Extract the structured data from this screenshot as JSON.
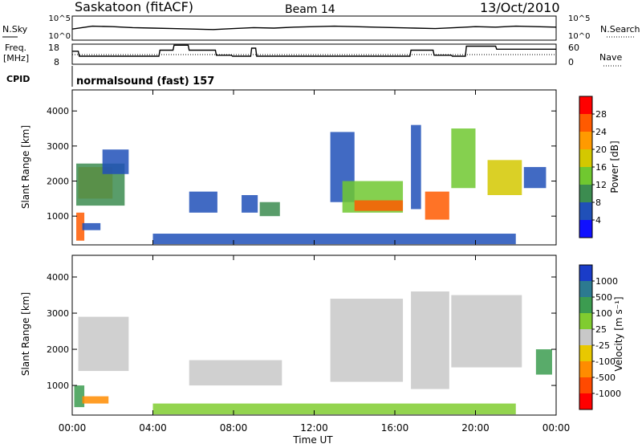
{
  "header": {
    "station": "Saskatoon (fitACF)",
    "beam": "Beam 14",
    "date": "13/Oct/2010"
  },
  "noise_panel": {
    "left_label": "N.Sky",
    "right_label": "N.Search",
    "left_ticks": [
      "10^5",
      "10^0"
    ],
    "right_ticks": [
      "10^5",
      "10^0"
    ]
  },
  "freq_panel": {
    "left_label": [
      "Freq.",
      "[MHz]"
    ],
    "right_label": "Nave",
    "left_ticks": [
      "18",
      "8"
    ],
    "right_ticks": [
      "60",
      "0"
    ]
  },
  "cpid": {
    "label": "CPID",
    "text": "normalsound (fast) 157"
  },
  "power_panel": {
    "ylabel": "Slant Range [km]",
    "yticks": [
      "4000",
      "3000",
      "2000",
      "1000"
    ],
    "colorbar_label": "Power [dB]",
    "colorbar_ticks": [
      "28",
      "24",
      "20",
      "16",
      "12",
      "8",
      "4"
    ],
    "colorbar_colors": [
      "#ff0000",
      "#ff5a00",
      "#ff9a00",
      "#d4c800",
      "#70c830",
      "#3c8c50",
      "#2050b8",
      "#1010ff"
    ]
  },
  "velocity_panel": {
    "ylabel": "Slant Range [km]",
    "yticks": [
      "4000",
      "3000",
      "2000",
      "1000"
    ],
    "colorbar_label": "Velocity [m s⁻¹]",
    "colorbar_ticks": [
      "1000",
      "500",
      "100",
      "25",
      "-25",
      "-100",
      "-500",
      "-1000"
    ],
    "colorbar_colors": [
      "#1a3cc8",
      "#2c7a90",
      "#3c9c50",
      "#80cc30",
      "#c8c8c8",
      "#e8c800",
      "#ff8c00",
      "#ff4a00",
      "#ff0000"
    ]
  },
  "x_axis": {
    "ticks": [
      "00:00",
      "04:00",
      "08:00",
      "12:00",
      "16:00",
      "20:00",
      "00:00"
    ],
    "label": "Time UT"
  },
  "chart_data": {
    "type": "heatmap",
    "x_range_hours": [
      0,
      24
    ],
    "y_range_km": [
      180,
      4600
    ],
    "noise_sky_log": {
      "x": [
        0,
        1,
        2,
        3,
        4,
        5,
        6,
        7,
        8,
        9,
        10,
        11,
        12,
        13,
        14,
        15,
        16,
        17,
        18,
        19,
        20,
        21,
        22,
        23,
        24
      ],
      "y": [
        2.3,
        2.9,
        2.8,
        2.6,
        2.5,
        2.4,
        2.3,
        2.2,
        2.4,
        2.6,
        2.5,
        2.7,
        2.8,
        2.9,
        2.8,
        2.7,
        2.6,
        2.5,
        2.4,
        2.6,
        2.8,
        2.7,
        2.9,
        2.8,
        2.7
      ]
    },
    "frequency_mhz": {
      "x": [
        0,
        0.3,
        0.35,
        4.3,
        4.35,
        5.0,
        5.05,
        5.75,
        5.8,
        7.1,
        7.15,
        7.9,
        7.95,
        8.85,
        8.9,
        9.1,
        9.15,
        15.0,
        15.05,
        16.75,
        16.8,
        17.9,
        17.95,
        18.8,
        18.85,
        19.5,
        19.55,
        21.0,
        21.05,
        24
      ],
      "y": [
        14.5,
        14.5,
        12,
        12,
        15,
        15,
        17.5,
        17.5,
        15,
        15,
        12.5,
        12.5,
        12,
        12,
        16,
        16,
        12,
        12,
        12,
        12,
        15,
        15,
        12.5,
        12.5,
        12,
        12,
        17,
        17,
        15.5,
        15.5
      ]
    },
    "nave_reference": 30,
    "power_db": {
      "units": "dB",
      "cells": [
        {
          "t": [
            0.3,
            2.0
          ],
          "r": [
            1500,
            2400
          ],
          "v": 22
        },
        {
          "t": [
            0.2,
            2.6
          ],
          "r": [
            1300,
            2500
          ],
          "v": 10
        },
        {
          "t": [
            1.5,
            2.8
          ],
          "r": [
            2200,
            2900
          ],
          "v": 6
        },
        {
          "t": [
            0.2,
            0.6
          ],
          "r": [
            300,
            1100
          ],
          "v": 26
        },
        {
          "t": [
            0.5,
            1.4
          ],
          "r": [
            600,
            800
          ],
          "v": 5
        },
        {
          "t": [
            5.8,
            7.2
          ],
          "r": [
            1100,
            1700
          ],
          "v": 6
        },
        {
          "t": [
            8.4,
            9.2
          ],
          "r": [
            1100,
            1600
          ],
          "v": 7
        },
        {
          "t": [
            9.3,
            10.3
          ],
          "r": [
            1000,
            1400
          ],
          "v": 8
        },
        {
          "t": [
            12.8,
            14.0
          ],
          "r": [
            1400,
            3400
          ],
          "v": 6
        },
        {
          "t": [
            13.4,
            16.4
          ],
          "r": [
            1100,
            2000
          ],
          "v": 14
        },
        {
          "t": [
            14.0,
            16.4
          ],
          "r": [
            1150,
            1450
          ],
          "v": 26
        },
        {
          "t": [
            16.8,
            17.3
          ],
          "r": [
            1200,
            3600
          ],
          "v": 5
        },
        {
          "t": [
            17.5,
            18.7
          ],
          "r": [
            900,
            1700
          ],
          "v": 25
        },
        {
          "t": [
            18.8,
            20.0
          ],
          "r": [
            1800,
            3500
          ],
          "v": 12
        },
        {
          "t": [
            20.6,
            22.3
          ],
          "r": [
            1600,
            2600
          ],
          "v": 18
        },
        {
          "t": [
            22.4,
            23.5
          ],
          "r": [
            1800,
            2400
          ],
          "v": 7
        },
        {
          "t": [
            4.0,
            22.0
          ],
          "r": [
            200,
            500
          ],
          "v": 6
        }
      ]
    },
    "velocity_ms": {
      "units": "m s^-1",
      "cells": [
        {
          "t": [
            0.3,
            2.8
          ],
          "r": [
            1400,
            2900
          ],
          "v": 0
        },
        {
          "t": [
            0.1,
            0.6
          ],
          "r": [
            400,
            1000
          ],
          "v": 150
        },
        {
          "t": [
            0.5,
            1.8
          ],
          "r": [
            500,
            700
          ],
          "v": -300
        },
        {
          "t": [
            5.8,
            10.4
          ],
          "r": [
            1000,
            1700
          ],
          "v": 0
        },
        {
          "t": [
            12.8,
            16.4
          ],
          "r": [
            1100,
            3400
          ],
          "v": 0
        },
        {
          "t": [
            16.8,
            18.7
          ],
          "r": [
            900,
            3600
          ],
          "v": 0
        },
        {
          "t": [
            18.8,
            22.3
          ],
          "r": [
            1500,
            3500
          ],
          "v": 0
        },
        {
          "t": [
            23.0,
            23.8
          ],
          "r": [
            1300,
            2000
          ],
          "v": 300
        },
        {
          "t": [
            4.0,
            22.0
          ],
          "r": [
            200,
            500
          ],
          "v": 60
        }
      ]
    }
  }
}
